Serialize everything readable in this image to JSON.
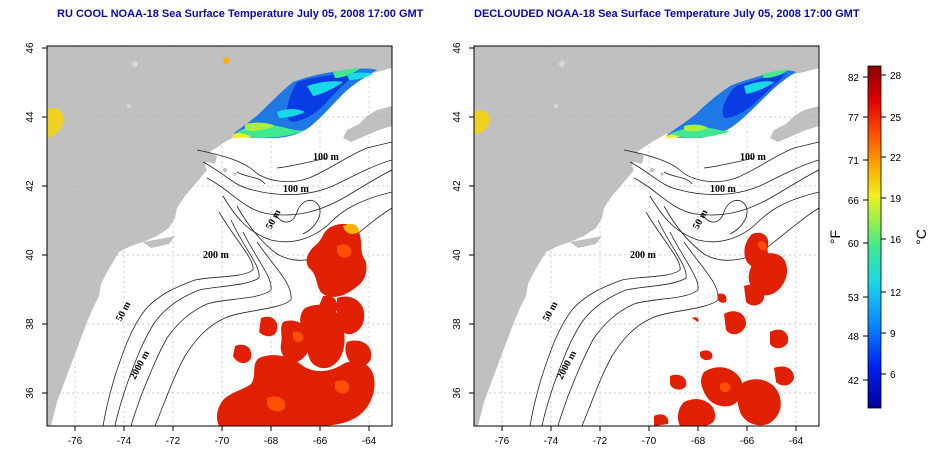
{
  "titles": {
    "left": "RU COOL NOAA-18 Sea Surface Temperature July 05, 2008 17:00 GMT",
    "right": "DECLOUDED NOAA-18 Sea Surface Temperature July 05, 2008 17:00 GMT"
  },
  "axes": {
    "lon_labels": [
      "-76",
      "-74",
      "-72",
      "-70",
      "-68",
      "-66",
      "-64"
    ],
    "lat_labels": [
      "46",
      "44",
      "42",
      "40",
      "38",
      "36"
    ]
  },
  "contour_labels": [
    "100 m",
    "100 m",
    "50 m",
    "200 m",
    "50 m",
    "2000 m"
  ],
  "colorbar": {
    "fahrenheit_ticks": [
      "82",
      "77",
      "71",
      "66",
      "60",
      "53",
      "48",
      "42"
    ],
    "celsius_ticks": [
      "28",
      "25",
      "22",
      "19",
      "16",
      "12",
      "9",
      "6"
    ],
    "fahrenheit_unit": "°F",
    "celsius_unit": "°C"
  },
  "colors": {
    "land": "#c0c0c0",
    "ocean": "#ffffff",
    "title": "#0a0aa8",
    "warm": "#e02000",
    "cool": "#1e78e6"
  }
}
